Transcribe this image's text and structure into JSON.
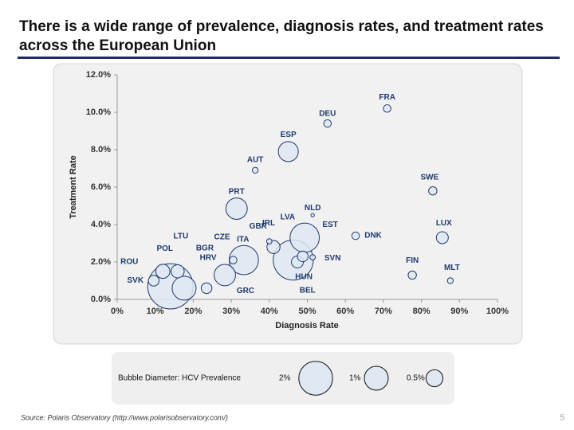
{
  "slide": {
    "title": "There is a wide range of prevalence, diagnosis rates, and treatment rates across the European Union",
    "source": "Source:  Polaris Observatory (http://www.polarisobservatory.com/)",
    "page_number": "5"
  },
  "chart_data": {
    "type": "bubble",
    "x_label": "Diagnosis Rate",
    "y_label": "Treatment Rate",
    "xlim": [
      0,
      100
    ],
    "ylim": [
      0,
      12
    ],
    "xticks": [
      {
        "value": 0,
        "label": "0%"
      },
      {
        "value": 10,
        "label": "10%"
      },
      {
        "value": 20,
        "label": "20%"
      },
      {
        "value": 30,
        "label": "30%"
      },
      {
        "value": 40,
        "label": "40%"
      },
      {
        "value": 50,
        "label": "50%"
      },
      {
        "value": 60,
        "label": "60%"
      },
      {
        "value": 70,
        "label": "70%"
      },
      {
        "value": 80,
        "label": "80%"
      },
      {
        "value": 90,
        "label": "90%"
      },
      {
        "value": 100,
        "label": "100%"
      }
    ],
    "yticks": [
      {
        "value": 0,
        "label": "0.0%"
      },
      {
        "value": 2,
        "label": "2.0%"
      },
      {
        "value": 4,
        "label": "4.0%"
      },
      {
        "value": 6,
        "label": "6.0%"
      },
      {
        "value": 8,
        "label": "8.0%"
      },
      {
        "value": 10,
        "label": "10.0%"
      },
      {
        "value": 12,
        "label": "12.0%"
      }
    ],
    "color": "#dfe7f2",
    "edge_color": "#1f3a6e",
    "points": [
      {
        "label": "FRA",
        "x": 71,
        "y": 10.2,
        "size": 0.1
      },
      {
        "label": "DEU",
        "x": 55.3,
        "y": 9.4,
        "size": 0.1
      },
      {
        "label": "ESP",
        "x": 45,
        "y": 7.9,
        "size": 0.7
      },
      {
        "label": "AUT",
        "x": 36.3,
        "y": 6.9,
        "size": 0.06
      },
      {
        "label": "SWE",
        "x": 83,
        "y": 5.8,
        "size": 0.12
      },
      {
        "label": "PRT",
        "x": 31.4,
        "y": 4.85,
        "size": 0.8
      },
      {
        "label": "NLD",
        "x": 51.4,
        "y": 4.5,
        "size": 0.02
      },
      {
        "label": "LUX",
        "x": 85.5,
        "y": 3.3,
        "size": 0.25
      },
      {
        "label": "DNK",
        "x": 62.7,
        "y": 3.4,
        "size": 0.1
      },
      {
        "label": "EST",
        "x": 49.3,
        "y": 3.3,
        "size": 1.5
      },
      {
        "label": "IRL",
        "x": 41.1,
        "y": 2.8,
        "size": 0.3
      },
      {
        "label": "GBR",
        "x": 40,
        "y": 3.1,
        "size": 0.05
      },
      {
        "label": "LVA",
        "x": 46.3,
        "y": 2.1,
        "size": 2.8
      },
      {
        "label": "ITA",
        "x": 33.3,
        "y": 2.1,
        "size": 1.5
      },
      {
        "label": "CZE",
        "x": 30.5,
        "y": 2.1,
        "size": 0.1
      },
      {
        "label": "SVN",
        "x": 51.4,
        "y": 2.25,
        "size": 0.05
      },
      {
        "label": "BEL",
        "x": 48.8,
        "y": 2.3,
        "size": 0.2
      },
      {
        "label": "HUN",
        "x": 47.4,
        "y": 2.0,
        "size": 0.25
      },
      {
        "label": "GRC",
        "x": 28.3,
        "y": 1.3,
        "size": 0.8
      },
      {
        "label": "HRV",
        "x": 23.5,
        "y": 0.6,
        "size": 0.2
      },
      {
        "label": "BGR",
        "x": 17.6,
        "y": 0.6,
        "size": 1.0
      },
      {
        "label": "LTU",
        "x": 15.9,
        "y": 1.5,
        "size": 0.3
      },
      {
        "label": "POL",
        "x": 14,
        "y": 0.7,
        "size": 3.6
      },
      {
        "label": "ROU",
        "x": 12,
        "y": 1.5,
        "size": 0.35
      },
      {
        "label": "SVK",
        "x": 9.6,
        "y": 1.0,
        "size": 0.2
      },
      {
        "label": "FIN",
        "x": 77.6,
        "y": 1.3,
        "size": 0.12
      },
      {
        "label": "MLT",
        "x": 87.6,
        "y": 1.0,
        "size": 0.06
      }
    ],
    "size_legend_title": "Bubble Diameter:  HCV Prevalence",
    "size_legend": [
      {
        "value": 2,
        "label": "2%"
      },
      {
        "value": 1,
        "label": "1%"
      },
      {
        "value": 0.5,
        "label": "0.5%"
      }
    ]
  }
}
